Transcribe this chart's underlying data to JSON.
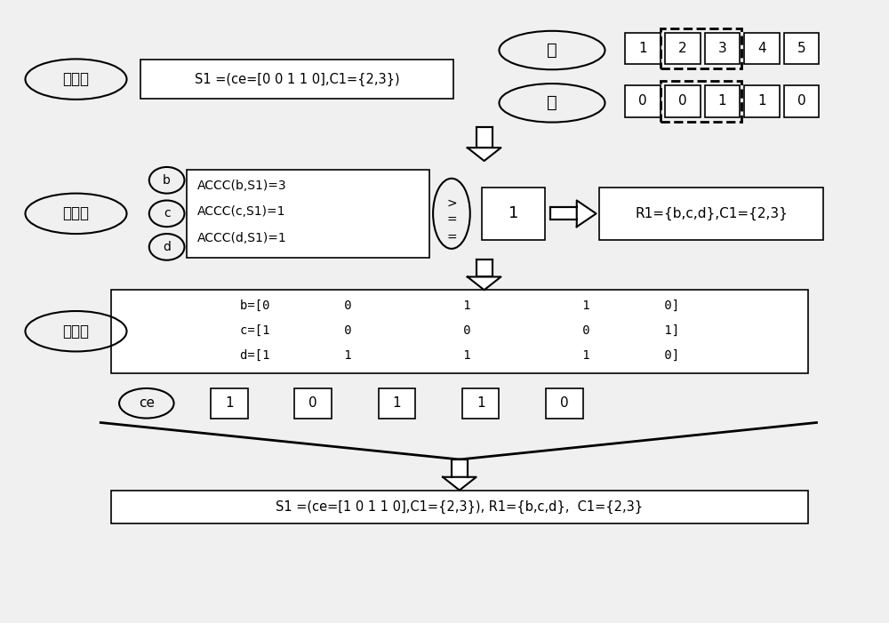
{
  "bg_color": "#f0f0f0",
  "step1_label": "第一步",
  "step2_label": "第二步",
  "step3_label": "第三步",
  "step1_text": "S1 =(ce=[0 0 1 1 0],C1={2,3})",
  "col_label": "列",
  "val_label": "值",
  "col_values": [
    "1",
    "2",
    "3",
    "4",
    "5"
  ],
  "val_values": [
    "0",
    "0",
    "1",
    "1",
    "0"
  ],
  "dashed_indices": [
    1,
    2
  ],
  "bcd_labels": [
    "b",
    "c",
    "d"
  ],
  "accc_lines": [
    "ACCC(b,S1)=3",
    "ACCC(c,S1)=1",
    "ACCC(d,S1)=1"
  ],
  "threshold": "1",
  "result_text": "R1={b,c,d},C1={2,3}",
  "step3_line1": "b=[0          0               1               1          0]",
  "step3_line2": "c=[1          0               0               0          1]",
  "step3_line3": "d=[1          1               1               1          0]",
  "ce_label": "ce",
  "ce_values": [
    "1",
    "0",
    "1",
    "1",
    "0"
  ],
  "final_text": "S1 =(ce=[1 0 1 1 0],C1={2,3}), R1={b,c,d},  C1={2,3}"
}
